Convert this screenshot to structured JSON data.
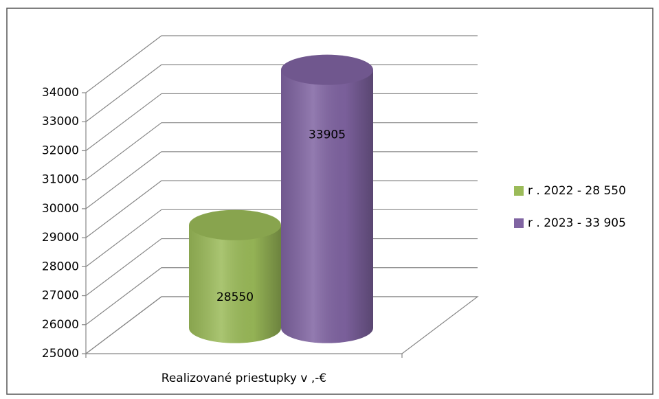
{
  "chart_data": {
    "type": "bar3d",
    "categories": [
      "Realizované priestupky v ,-€"
    ],
    "series": [
      {
        "name": "r . 2022 - 28 550",
        "color": "#9bbb59",
        "values": [
          28550
        ]
      },
      {
        "name": "r . 2023 - 33 905",
        "color": "#8064a2",
        "values": [
          33905
        ]
      }
    ],
    "ylim": [
      25000,
      34000
    ],
    "yticks": [
      25000,
      26000,
      27000,
      28000,
      29000,
      30000,
      31000,
      32000,
      33000,
      34000
    ],
    "grid": true,
    "legend": "right"
  }
}
